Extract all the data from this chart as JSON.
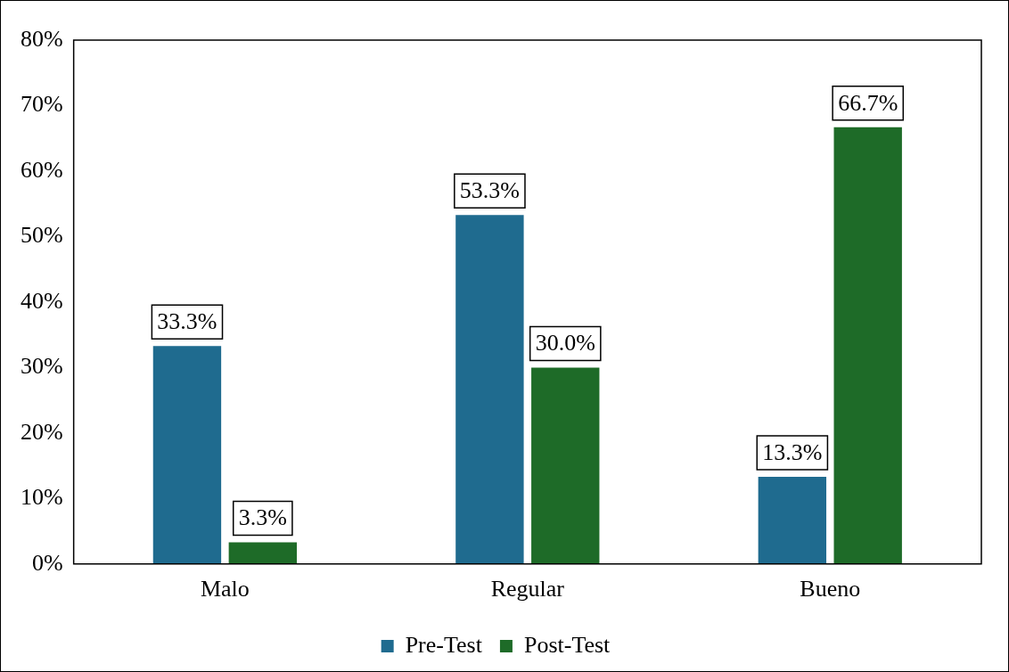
{
  "chart_data": {
    "type": "bar",
    "categories": [
      "Malo",
      "Regular",
      "Bueno"
    ],
    "series": [
      {
        "name": "Pre-Test",
        "color": "#1f6b8f",
        "values": [
          33.3,
          53.3,
          13.3
        ],
        "value_labels": [
          "33.3%",
          "53.3%",
          "13.3%"
        ]
      },
      {
        "name": "Post-Test",
        "color": "#1e6b28",
        "values": [
          3.3,
          30.0,
          66.7
        ],
        "value_labels": [
          "3.3%",
          "30.0%",
          "66.7%"
        ]
      }
    ],
    "ylim": [
      0,
      80
    ],
    "yticks": [
      {
        "value": 0,
        "label": "0%"
      },
      {
        "value": 10,
        "label": "10%"
      },
      {
        "value": 20,
        "label": "20%"
      },
      {
        "value": 30,
        "label": "30%"
      },
      {
        "value": 40,
        "label": "40%"
      },
      {
        "value": 50,
        "label": "50%"
      },
      {
        "value": 60,
        "label": "60%"
      },
      {
        "value": 70,
        "label": "70%"
      },
      {
        "value": 80,
        "label": "80%"
      }
    ],
    "grid": false,
    "legend": "bottom"
  }
}
